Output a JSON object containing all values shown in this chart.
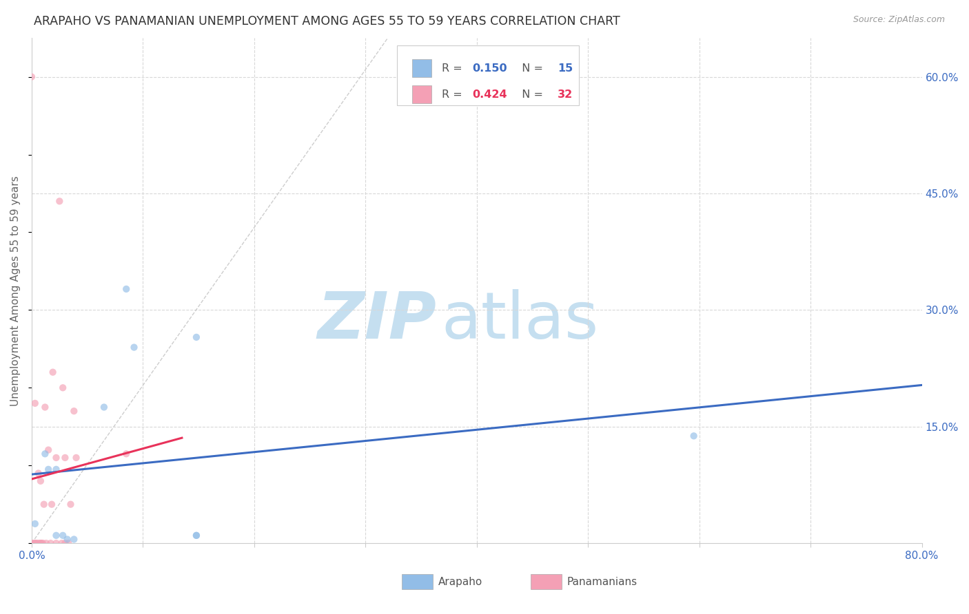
{
  "title": "ARAPAHO VS PANAMANIAN UNEMPLOYMENT AMONG AGES 55 TO 59 YEARS CORRELATION CHART",
  "source": "Source: ZipAtlas.com",
  "ylabel": "Unemployment Among Ages 55 to 59 years",
  "xlim": [
    0.0,
    0.8
  ],
  "ylim": [
    0.0,
    0.65
  ],
  "xticks_minor": [
    0.1,
    0.2,
    0.3,
    0.4,
    0.5,
    0.6,
    0.7
  ],
  "xtick_labels_ends": {
    "0.0": "0.0%",
    "0.8": "80.0%"
  },
  "yticks_right": [
    0.15,
    0.3,
    0.45,
    0.6
  ],
  "ytick_labels_right": [
    "15.0%",
    "30.0%",
    "45.0%",
    "60.0%"
  ],
  "arapaho_x": [
    0.003,
    0.012,
    0.015,
    0.022,
    0.022,
    0.028,
    0.032,
    0.038,
    0.065,
    0.085,
    0.092,
    0.148,
    0.148,
    0.148,
    0.595
  ],
  "arapaho_y": [
    0.025,
    0.115,
    0.095,
    0.095,
    0.01,
    0.01,
    0.005,
    0.005,
    0.175,
    0.327,
    0.252,
    0.01,
    0.01,
    0.265,
    0.138
  ],
  "panamanian_x": [
    0.0,
    0.0,
    0.002,
    0.003,
    0.003,
    0.004,
    0.005,
    0.006,
    0.007,
    0.008,
    0.008,
    0.009,
    0.01,
    0.011,
    0.012,
    0.013,
    0.015,
    0.017,
    0.018,
    0.019,
    0.022,
    0.022,
    0.025,
    0.027,
    0.028,
    0.03,
    0.03,
    0.033,
    0.035,
    0.038,
    0.04,
    0.085
  ],
  "panamanian_y": [
    0.6,
    0.0,
    0.0,
    0.0,
    0.18,
    0.0,
    0.0,
    0.09,
    0.0,
    0.0,
    0.08,
    0.0,
    0.0,
    0.05,
    0.175,
    0.0,
    0.12,
    0.0,
    0.05,
    0.22,
    0.0,
    0.11,
    0.44,
    0.0,
    0.2,
    0.11,
    0.0,
    0.0,
    0.05,
    0.17,
    0.11,
    0.115
  ],
  "arapaho_color": "#92bde7",
  "panamanian_color": "#f4a0b5",
  "arapaho_line_color": "#3b6bc2",
  "panamanian_line_color": "#e8325a",
  "ref_line_color": "#c8c8c8",
  "grid_color": "#d8d8d8",
  "R_arapaho": 0.15,
  "N_arapaho": 15,
  "R_panamanian": 0.424,
  "N_panamanian": 32,
  "marker_size": 55,
  "marker_alpha": 0.65,
  "background_color": "#ffffff",
  "watermark_zip": "ZIP",
  "watermark_atlas": "atlas",
  "watermark_color_zip": "#c5dff0",
  "watermark_color_atlas": "#c5dff0",
  "pan_line_xlim": [
    0.0,
    0.135
  ]
}
